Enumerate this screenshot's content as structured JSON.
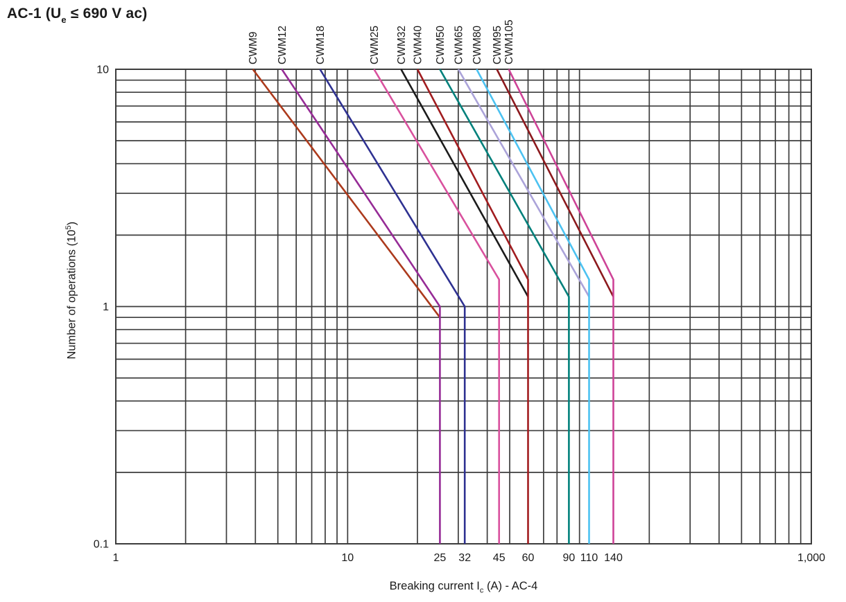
{
  "page": {
    "title": {
      "prefix": "AC-1 (U",
      "subscript": "e",
      "suffix": " ≤ 690 V ac)"
    }
  },
  "chart_data": {
    "type": "line",
    "title": "AC-1 (Ue ≤ 690 V ac)",
    "x_axis": {
      "label_prefix": "Breaking current I",
      "label_subscript": "c",
      "label_suffix": " (A) - AC-4",
      "scale": "log",
      "min": 1,
      "max": 1000,
      "ticks": [
        {
          "value": 1,
          "label": "1"
        },
        {
          "value": 10,
          "label": "10"
        },
        {
          "value": 25,
          "label": "25"
        },
        {
          "value": 32,
          "label": "32"
        },
        {
          "value": 45,
          "label": "45"
        },
        {
          "value": 60,
          "label": "60"
        },
        {
          "value": 90,
          "label": "90"
        },
        {
          "value": 110,
          "label": "110"
        },
        {
          "value": 140,
          "label": "140"
        },
        {
          "value": 1000,
          "label": "1,000"
        }
      ]
    },
    "y_axis": {
      "label_prefix": "Number of operations (10",
      "label_superscript": "5",
      "label_suffix": ")",
      "scale": "log",
      "min": 0.1,
      "max": 10,
      "ticks": [
        {
          "value": 10,
          "label": "10"
        },
        {
          "value": 1,
          "label": "1"
        },
        {
          "value": 0.1,
          "label": "0.1"
        }
      ]
    },
    "grid": {
      "color": "#3c3c3c",
      "log_minor_lines": true,
      "border": true
    },
    "legend_position": "labels-above-plot",
    "series": [
      {
        "name": "CWM9",
        "color": "#AC3A1C",
        "points": [
          [
            3.9,
            10
          ],
          [
            25,
            0.9
          ]
        ]
      },
      {
        "name": "CWM12",
        "color": "#962B96",
        "points": [
          [
            5.2,
            10
          ],
          [
            25,
            1.0
          ],
          [
            25,
            0.1
          ]
        ]
      },
      {
        "name": "CWM18",
        "color": "#2E3191",
        "points": [
          [
            7.6,
            10
          ],
          [
            32,
            1.0
          ],
          [
            32,
            0.1
          ]
        ]
      },
      {
        "name": "CWM25",
        "color": "#D9519E",
        "points": [
          [
            13,
            10
          ],
          [
            45,
            1.3
          ],
          [
            45,
            0.1
          ]
        ]
      },
      {
        "name": "CWM32",
        "color": "#1B1B1B",
        "points": [
          [
            17,
            10
          ],
          [
            60,
            1.1
          ]
        ]
      },
      {
        "name": "CWM40",
        "color": "#A11C1F",
        "points": [
          [
            20,
            10
          ],
          [
            60,
            1.3
          ],
          [
            60,
            0.1
          ]
        ]
      },
      {
        "name": "CWM50",
        "color": "#00807B",
        "points": [
          [
            25,
            10
          ],
          [
            90,
            1.1
          ],
          [
            90,
            0.1
          ]
        ]
      },
      {
        "name": "CWM65",
        "color": "#ABA3D9",
        "points": [
          [
            30,
            10
          ],
          [
            110,
            1.1
          ]
        ]
      },
      {
        "name": "CWM80",
        "color": "#4CC2F1",
        "points": [
          [
            36,
            10
          ],
          [
            110,
            1.3
          ],
          [
            110,
            0.1
          ]
        ]
      },
      {
        "name": "CWM95",
        "color": "#8C191D",
        "points": [
          [
            44,
            10
          ],
          [
            140,
            1.1
          ]
        ]
      },
      {
        "name": "CWM105",
        "color": "#CE4397",
        "points": [
          [
            49.5,
            10
          ],
          [
            140,
            1.3
          ],
          [
            140,
            0.1
          ]
        ]
      }
    ]
  }
}
